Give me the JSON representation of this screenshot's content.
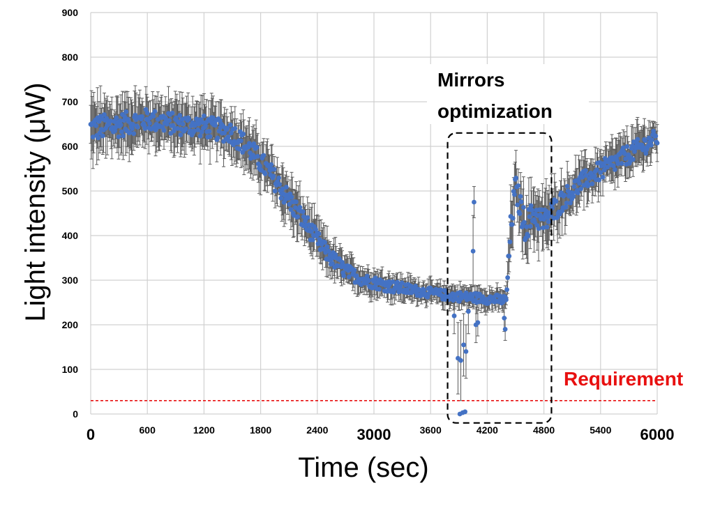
{
  "chart_data": {
    "type": "scatter",
    "title": "",
    "xlabel": "Time (sec)",
    "ylabel": "Light intensity (μW)",
    "xlim": [
      0,
      6000
    ],
    "ylim": [
      0,
      900
    ],
    "grid": true,
    "x_ticks": [
      {
        "value": 0,
        "label": "0",
        "emphasis": true
      },
      {
        "value": 600,
        "label": "600",
        "emphasis": false
      },
      {
        "value": 1200,
        "label": "1200",
        "emphasis": false
      },
      {
        "value": 1800,
        "label": "1800",
        "emphasis": false
      },
      {
        "value": 2400,
        "label": "2400",
        "emphasis": false
      },
      {
        "value": 3000,
        "label": "3000",
        "emphasis": true
      },
      {
        "value": 3600,
        "label": "3600",
        "emphasis": false
      },
      {
        "value": 4200,
        "label": "4200",
        "emphasis": false
      },
      {
        "value": 4800,
        "label": "4800",
        "emphasis": false
      },
      {
        "value": 5400,
        "label": "5400",
        "emphasis": false
      },
      {
        "value": 6000,
        "label": "6000",
        "emphasis": true
      }
    ],
    "y_ticks": [
      {
        "value": 0,
        "label": "0"
      },
      {
        "value": 100,
        "label": "100"
      },
      {
        "value": 200,
        "label": "200"
      },
      {
        "value": 300,
        "label": "300"
      },
      {
        "value": 400,
        "label": "400"
      },
      {
        "value": 500,
        "label": "500"
      },
      {
        "value": 600,
        "label": "600"
      },
      {
        "value": 700,
        "label": "700"
      },
      {
        "value": 800,
        "label": "800"
      },
      {
        "value": 900,
        "label": "900"
      }
    ],
    "series": [
      {
        "name": "Light intensity",
        "marker_color": "#4472c4",
        "error_bar_color": "#595959",
        "trend_points": [
          {
            "x": 0,
            "y": 640,
            "err": 55
          },
          {
            "x": 300,
            "y": 648,
            "err": 50
          },
          {
            "x": 600,
            "y": 660,
            "err": 45
          },
          {
            "x": 900,
            "y": 650,
            "err": 45
          },
          {
            "x": 1200,
            "y": 645,
            "err": 45
          },
          {
            "x": 1500,
            "y": 630,
            "err": 45
          },
          {
            "x": 1700,
            "y": 590,
            "err": 45
          },
          {
            "x": 1900,
            "y": 540,
            "err": 45
          },
          {
            "x": 2100,
            "y": 480,
            "err": 45
          },
          {
            "x": 2300,
            "y": 420,
            "err": 40
          },
          {
            "x": 2500,
            "y": 360,
            "err": 35
          },
          {
            "x": 2700,
            "y": 320,
            "err": 30
          },
          {
            "x": 2900,
            "y": 300,
            "err": 25
          },
          {
            "x": 3200,
            "y": 285,
            "err": 25
          },
          {
            "x": 3500,
            "y": 275,
            "err": 20
          },
          {
            "x": 3800,
            "y": 265,
            "err": 20
          },
          {
            "x": 4000,
            "y": 262,
            "err": 20
          },
          {
            "x": 4400,
            "y": 255,
            "err": 20
          },
          {
            "x": 4450,
            "y": 420,
            "err": 60
          },
          {
            "x": 4500,
            "y": 510,
            "err": 50
          },
          {
            "x": 4600,
            "y": 420,
            "err": 60
          },
          {
            "x": 4700,
            "y": 450,
            "err": 55
          },
          {
            "x": 4800,
            "y": 430,
            "err": 55
          },
          {
            "x": 5000,
            "y": 480,
            "err": 45
          },
          {
            "x": 5200,
            "y": 520,
            "err": 40
          },
          {
            "x": 5400,
            "y": 545,
            "err": 40
          },
          {
            "x": 5600,
            "y": 570,
            "err": 40
          },
          {
            "x": 5800,
            "y": 595,
            "err": 40
          },
          {
            "x": 6000,
            "y": 620,
            "err": 35
          }
        ],
        "outliers": [
          {
            "x": 3850,
            "y": 220,
            "err": 40
          },
          {
            "x": 3890,
            "y": 125,
            "err": 80
          },
          {
            "x": 3910,
            "y": 0,
            "err": 0
          },
          {
            "x": 3920,
            "y": 120,
            "err": 90
          },
          {
            "x": 3940,
            "y": 3,
            "err": 0
          },
          {
            "x": 3950,
            "y": 155,
            "err": 70
          },
          {
            "x": 3965,
            "y": 5,
            "err": 0
          },
          {
            "x": 3975,
            "y": 140,
            "err": 60
          },
          {
            "x": 4000,
            "y": 230,
            "err": 50
          },
          {
            "x": 4050,
            "y": 365,
            "err": 80
          },
          {
            "x": 4060,
            "y": 475,
            "err": 35
          },
          {
            "x": 4080,
            "y": 200,
            "err": 40
          },
          {
            "x": 4100,
            "y": 205,
            "err": 30
          },
          {
            "x": 4380,
            "y": 215,
            "err": 30
          },
          {
            "x": 4390,
            "y": 190,
            "err": 25
          }
        ]
      }
    ],
    "reference_line": {
      "value": 30,
      "label": "Requirement",
      "color": "#e81010"
    },
    "annotation": {
      "line1": "Mirrors",
      "line2": "optimization",
      "x_range": [
        3780,
        4880
      ],
      "y_range": [
        -20,
        630
      ]
    }
  }
}
